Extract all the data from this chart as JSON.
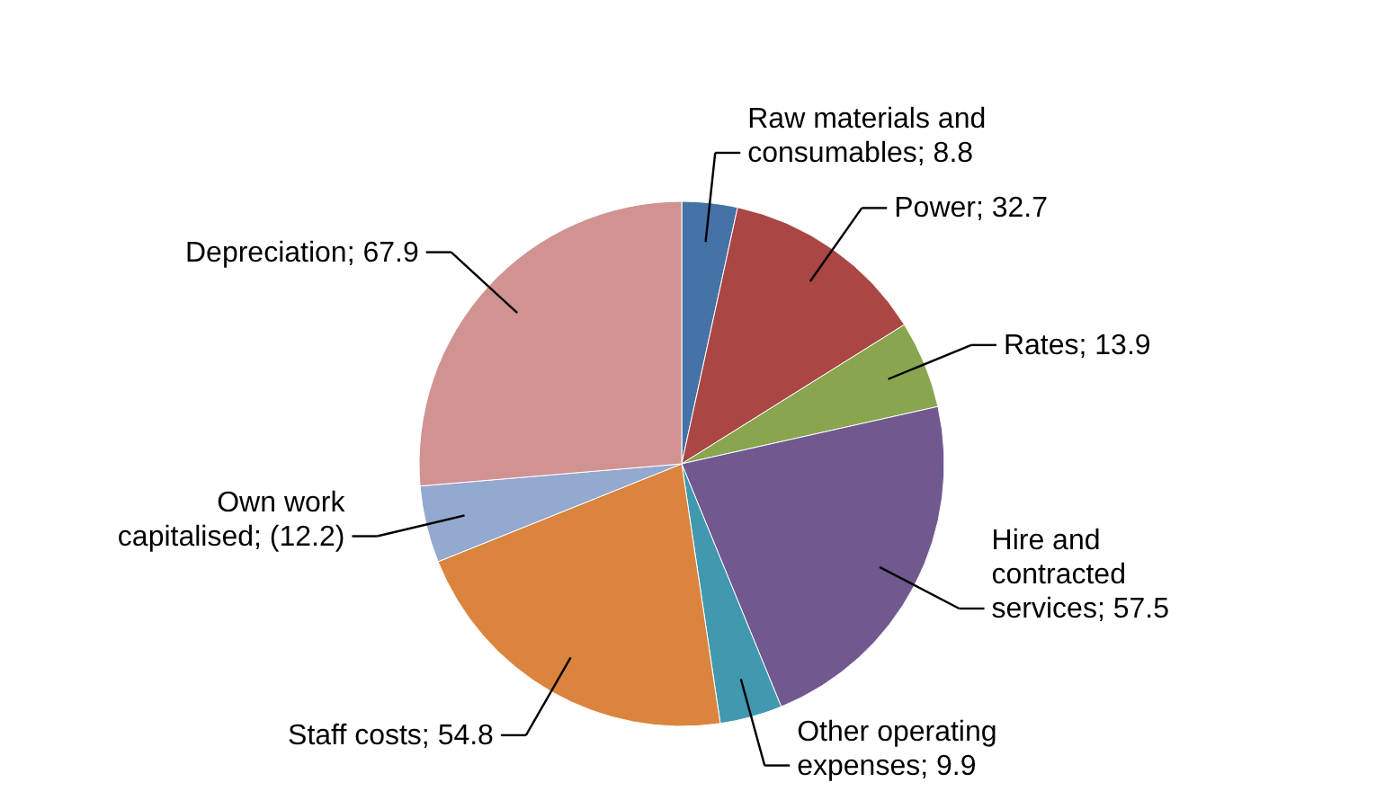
{
  "chart_data": {
    "type": "pie",
    "categories": [
      "Raw materials and consumables",
      "Power",
      "Rates",
      "Hire and contracted services",
      "Other operating expenses",
      "Staff costs",
      "Own work capitalised",
      "Depreciation"
    ],
    "values": [
      8.8,
      32.7,
      13.9,
      57.5,
      9.9,
      54.8,
      12.2,
      67.9
    ],
    "value_labels": [
      "8.8",
      "32.7",
      "13.9",
      "57.5",
      "9.9",
      "54.8",
      "(12.2)",
      "67.9"
    ],
    "colors": [
      "#4572a7",
      "#aa4643",
      "#89a54e",
      "#71588f",
      "#4198af",
      "#db843d",
      "#93a9cf",
      "#d19392"
    ]
  }
}
